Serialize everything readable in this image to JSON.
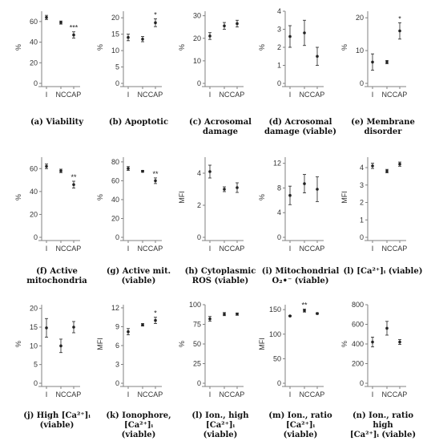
{
  "colors": {
    "axis": "#808080",
    "mark": "#222222",
    "text": "#333333"
  },
  "chart_data": [
    {
      "type": "scatter",
      "ylabel": "%",
      "categories": [
        "I",
        "NC",
        "CAP"
      ],
      "ylim": [
        0,
        70
      ],
      "yticks": [
        0,
        20,
        40,
        60
      ],
      "values": [
        64,
        59,
        47
      ],
      "errors": [
        2,
        1.5,
        3
      ],
      "annotations": [
        "",
        "",
        "***"
      ],
      "caption": [
        "(a) Viability"
      ]
    },
    {
      "type": "scatter",
      "ylabel": "%",
      "categories": [
        "I",
        "NC",
        "CAP"
      ],
      "ylim": [
        0,
        22
      ],
      "yticks": [
        0,
        5,
        10,
        15,
        20
      ],
      "values": [
        14,
        13.5,
        18.5
      ],
      "errors": [
        1,
        0.8,
        1.2
      ],
      "annotations": [
        "",
        "",
        "*"
      ],
      "caption": [
        "(b) Apoptotic"
      ]
    },
    {
      "type": "scatter",
      "ylabel": "%",
      "categories": [
        "I",
        "NC",
        "CAP"
      ],
      "ylim": [
        0,
        32
      ],
      "yticks": [
        0,
        10,
        20,
        30
      ],
      "values": [
        21,
        25.5,
        26.5
      ],
      "errors": [
        1.5,
        1.5,
        1.5
      ],
      "annotations": [
        "",
        "",
        ""
      ],
      "caption": [
        "(c) Acrosomal",
        "damage"
      ]
    },
    {
      "type": "scatter",
      "ylabel": "%",
      "categories": [
        "I",
        "NC",
        "CAP"
      ],
      "ylim": [
        0,
        4
      ],
      "yticks": [
        0,
        1,
        2,
        3,
        4
      ],
      "values": [
        2.6,
        2.8,
        1.5
      ],
      "errors": [
        0.6,
        0.7,
        0.5
      ],
      "annotations": [
        "",
        "",
        ""
      ],
      "caption": [
        "(d) Acrosomal",
        "damage (viable)"
      ]
    },
    {
      "type": "scatter",
      "ylabel": "%",
      "categories": [
        "I",
        "NC",
        "CAP"
      ],
      "ylim": [
        0,
        22
      ],
      "yticks": [
        0,
        10,
        20
      ],
      "values": [
        6.5,
        6.5,
        16
      ],
      "errors": [
        2.5,
        0.5,
        2.5
      ],
      "annotations": [
        "",
        "",
        "*"
      ],
      "caption": [
        "(e) Membrane",
        "disorder"
      ]
    },
    {
      "type": "scatter",
      "ylabel": "%",
      "categories": [
        "I",
        "NC",
        "CAP"
      ],
      "ylim": [
        0,
        70
      ],
      "yticks": [
        0,
        20,
        40,
        60
      ],
      "values": [
        62,
        58,
        46
      ],
      "errors": [
        2,
        1.5,
        3
      ],
      "annotations": [
        "",
        "",
        "**"
      ],
      "caption": [
        "(f) Active",
        "mitochondria"
      ]
    },
    {
      "type": "scatter",
      "ylabel": "%",
      "categories": [
        "I",
        "NC",
        "CAP"
      ],
      "ylim": [
        0,
        85
      ],
      "yticks": [
        0,
        20,
        40,
        60,
        80
      ],
      "values": [
        73,
        70,
        60
      ],
      "errors": [
        2,
        1,
        3
      ],
      "annotations": [
        "",
        "",
        "**"
      ],
      "caption": [
        "(g) Active mit.",
        "(viable)"
      ]
    },
    {
      "type": "scatter",
      "ylabel": "MFI",
      "categories": [
        "I",
        "NC",
        "CAP"
      ],
      "ylim": [
        0,
        5
      ],
      "yticks": [
        0,
        2,
        4
      ],
      "values": [
        4.1,
        3,
        3.1
      ],
      "errors": [
        0.4,
        0.15,
        0.3
      ],
      "annotations": [
        "",
        "",
        ""
      ],
      "caption": [
        "(h) Cytoplasmic",
        "ROS (viable)"
      ]
    },
    {
      "type": "scatter",
      "ylabel": "%",
      "categories": [
        "I",
        "NC",
        "CAP"
      ],
      "ylim": [
        0,
        13
      ],
      "yticks": [
        0,
        4,
        8,
        12
      ],
      "values": [
        6.8,
        8.7,
        7.8
      ],
      "errors": [
        1.5,
        1.5,
        2
      ],
      "annotations": [
        "",
        "",
        ""
      ],
      "caption": [
        "(i) Mitochondrial",
        "O₂•⁻ (viable)"
      ]
    },
    {
      "type": "scatter",
      "ylabel": "MFI",
      "categories": [
        "I",
        "NC",
        "CAP"
      ],
      "ylim": [
        0,
        4.6
      ],
      "yticks": [
        0,
        1,
        2,
        3,
        4
      ],
      "values": [
        4.1,
        3.8,
        4.2
      ],
      "errors": [
        0.15,
        0.1,
        0.12
      ],
      "annotations": [
        "",
        "",
        ""
      ],
      "caption": [
        "(l) [Ca²⁺]ᵢ (viable)"
      ]
    },
    {
      "type": "scatter",
      "ylabel": "%",
      "categories": [
        "I",
        "NC",
        "CAP"
      ],
      "ylim": [
        0,
        21
      ],
      "yticks": [
        0,
        5,
        10,
        15,
        20
      ],
      "values": [
        14.8,
        10,
        15
      ],
      "errors": [
        2.5,
        1.8,
        1.5
      ],
      "annotations": [
        "",
        "",
        ""
      ],
      "caption": [
        "(j) High [Ca²⁺]ᵢ",
        "(viable)"
      ]
    },
    {
      "type": "scatter",
      "ylabel": "MFI",
      "categories": [
        "I",
        "NC",
        "CAP"
      ],
      "ylim": [
        0,
        12.5
      ],
      "yticks": [
        0,
        3,
        6,
        9,
        12
      ],
      "values": [
        8.2,
        9.3,
        10
      ],
      "errors": [
        0.5,
        0.2,
        0.5
      ],
      "annotations": [
        "",
        "",
        "*"
      ],
      "caption": [
        "(k) Ionophore, [Ca²⁺]ᵢ",
        "(viable)"
      ]
    },
    {
      "type": "scatter",
      "ylabel": "%",
      "categories": [
        "I",
        "NC",
        "CAP"
      ],
      "ylim": [
        0,
        100
      ],
      "yticks": [
        0,
        25,
        50,
        75,
        100
      ],
      "values": [
        82,
        88,
        88
      ],
      "errors": [
        3,
        2,
        1.5
      ],
      "annotations": [
        "",
        "",
        ""
      ],
      "caption": [
        "(l) Ion., high [Ca²⁺]ᵢ",
        "(viable)"
      ]
    },
    {
      "type": "scatter",
      "ylabel": "MFI",
      "categories": [
        "I",
        "NC",
        "CAP"
      ],
      "ylim": [
        0,
        160
      ],
      "yticks": [
        0,
        50,
        100,
        150
      ],
      "values": [
        137,
        148,
        142
      ],
      "errors": [
        1,
        3,
        1.5
      ],
      "annotations": [
        "",
        "**",
        ""
      ],
      "caption": [
        "(m) Ion., ratio [Ca²⁺]ᵢ",
        "(viable)"
      ]
    },
    {
      "type": "scatter",
      "ylabel": "%",
      "categories": [
        "I",
        "NC",
        "CAP"
      ],
      "ylim": [
        0,
        800
      ],
      "yticks": [
        0,
        200,
        400,
        600,
        800
      ],
      "values": [
        420,
        560,
        420
      ],
      "errors": [
        50,
        70,
        25
      ],
      "annotations": [
        "",
        "",
        ""
      ],
      "caption": [
        "(n) Ion., ratio high",
        "[Ca²⁺]ᵢ (viable)"
      ]
    }
  ]
}
